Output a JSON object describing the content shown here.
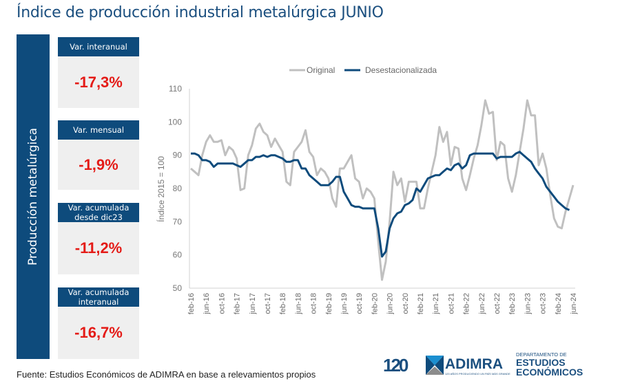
{
  "header": {
    "title": "Índice de producción industrial metalúrgica JUNIO"
  },
  "sidebar": {
    "label": "Producción metalúrgica"
  },
  "kpis": [
    {
      "label": "Var. interanual",
      "value": "-17,3%"
    },
    {
      "label": "Var. mensual",
      "value": "-1,9%"
    },
    {
      "label": "Var. acumulada desde dic23",
      "value": "-11,2%"
    },
    {
      "label": "Var. acumulada interanual",
      "value": "-16,7%"
    }
  ],
  "footer": {
    "source": "Fuente: Estudios Económicos de ADIMRA en base a relevamientos propios",
    "logo_120": "120",
    "logo_adimra": "ADIMRA",
    "logo_adimra_tagline": "120 AÑOS PRODUCIENDO UN PAÍS MÁS GRANDE",
    "dept_small": "DEPARTAMENTO DE",
    "dept_line1": "ESTUDIOS",
    "dept_line2": "ECONÓMICOS"
  },
  "colors": {
    "brand_blue": "#0e4b7c",
    "kpi_red": "#e41b17",
    "original_gray": "#c0c0c0"
  },
  "chart_data": {
    "type": "line",
    "title": "",
    "xlabel": "",
    "ylabel": "Índice 2015 = 100",
    "ylim": [
      50,
      110
    ],
    "yticks": [
      50,
      60,
      70,
      80,
      90,
      100,
      110
    ],
    "grid": false,
    "legend": "top-center",
    "x_start": "feb-16",
    "x_tick_labels": [
      "feb-16",
      "jun-16",
      "oct-16",
      "feb-17",
      "jun-17",
      "oct-17",
      "feb-18",
      "jun-18",
      "oct-18",
      "feb-19",
      "jun-19",
      "oct-19",
      "feb-20",
      "jun-20",
      "oct-20",
      "feb-21",
      "jun-21",
      "oct-21",
      "feb-22",
      "jun-22",
      "oct-22",
      "feb-23",
      "jun-23",
      "oct-23",
      "feb-24",
      "jun-24"
    ],
    "series": [
      {
        "name": "Original",
        "color": "#c0c0c0",
        "values": [
          86,
          85,
          84,
          90,
          94,
          96,
          94,
          94,
          94.5,
          90,
          92.5,
          91.5,
          89,
          79.5,
          80,
          90,
          93,
          98,
          99.5,
          97,
          96,
          92.5,
          95,
          93,
          91,
          82,
          81,
          91,
          92.5,
          94,
          97.5,
          91,
          89.5,
          84,
          86,
          85,
          83,
          77,
          74.5,
          86,
          86,
          88,
          90,
          83,
          82,
          77,
          80,
          79,
          77,
          64,
          52.5,
          58,
          70,
          85,
          81,
          83,
          76,
          82,
          82,
          82,
          74,
          74,
          80,
          85,
          90,
          98.5,
          94,
          97,
          87,
          92.5,
          92,
          83,
          79.5,
          84,
          89,
          93,
          99,
          106.5,
          102.5,
          103,
          88.5,
          94,
          93,
          83,
          79,
          84,
          91,
          98,
          106.5,
          102,
          102,
          87,
          90.5,
          86,
          78,
          71,
          68.5,
          68,
          73,
          77,
          81
        ]
      },
      {
        "name": "Desestacionalizada",
        "color": "#0e4b7c",
        "values": [
          90.5,
          90.5,
          90,
          88.5,
          88.5,
          88,
          86.5,
          87.5,
          87.5,
          87.5,
          87.5,
          87.5,
          87,
          86.5,
          87.5,
          88.5,
          88.5,
          89.5,
          89.5,
          90,
          89.5,
          90,
          90,
          89.5,
          89,
          88,
          88,
          88.5,
          88.5,
          86,
          86,
          84,
          83,
          82,
          81,
          81,
          81,
          82,
          83.5,
          83.5,
          79,
          77,
          75,
          74.5,
          74.5,
          74,
          74,
          74,
          74,
          68,
          59.5,
          61,
          68,
          71,
          72.5,
          73,
          75,
          75.5,
          76.5,
          80,
          79,
          81,
          83,
          83.5,
          84,
          84,
          85,
          86,
          85.5,
          87,
          87.5,
          86,
          87,
          90,
          90.5,
          90.5,
          90.5,
          90.5,
          90.5,
          90.5,
          89,
          89.5,
          89.5,
          89.5,
          89.5,
          90.5,
          91,
          90,
          89,
          88,
          86,
          84.5,
          83,
          80.5,
          79,
          77.5,
          76,
          75,
          74,
          73.5
        ]
      }
    ]
  }
}
